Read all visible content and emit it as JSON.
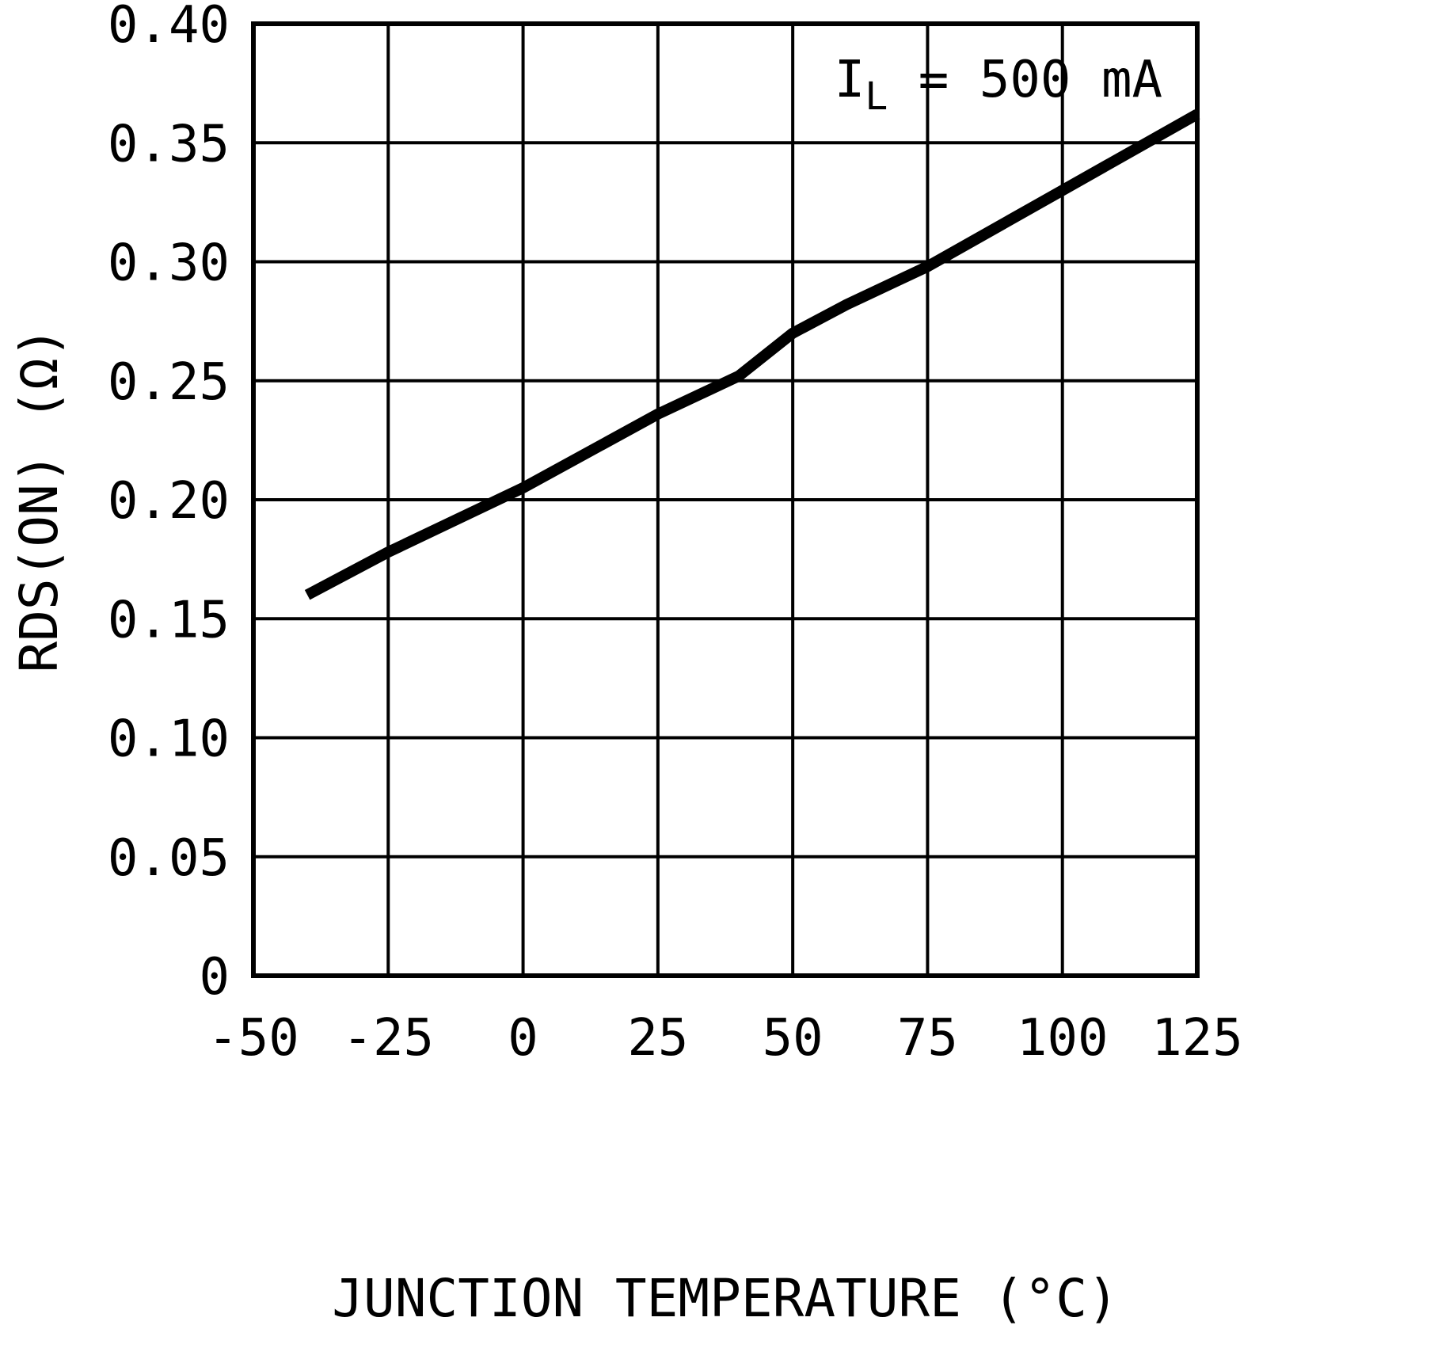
{
  "chart_data": {
    "type": "line",
    "title": "",
    "xlabel": "JUNCTION TEMPERATURE (°C)",
    "ylabel": "RDS(ON) (Ω)",
    "annotation": {
      "prefix": "I",
      "sub": "L",
      "suffix": " = 500 mA"
    },
    "xlim": [
      -50,
      125
    ],
    "ylim": [
      0,
      0.4
    ],
    "xticks": [
      -50,
      -25,
      0,
      25,
      50,
      75,
      100,
      125
    ],
    "xtick_labels": [
      "-50",
      "-25",
      "0",
      "25",
      "50",
      "75",
      "100",
      "125"
    ],
    "yticks": [
      0,
      0.05,
      0.1,
      0.15,
      0.2,
      0.25,
      0.3,
      0.35,
      0.4
    ],
    "ytick_labels": [
      "0",
      "0.05",
      "0.10",
      "0.15",
      "0.20",
      "0.25",
      "0.30",
      "0.35",
      "0.40"
    ],
    "grid": true,
    "legend": "none",
    "series": [
      {
        "name": "RDS(ON) at IL = 500 mA",
        "x": [
          -40,
          -25,
          0,
          25,
          40,
          50,
          60,
          75,
          100,
          125
        ],
        "y": [
          0.16,
          0.178,
          0.205,
          0.236,
          0.252,
          0.27,
          0.282,
          0.298,
          0.33,
          0.362
        ],
        "color": "#000000"
      }
    ]
  },
  "colors": {
    "background": "#ffffff",
    "grid": "#000000",
    "border": "#000000",
    "line": "#000000",
    "text": "#000000"
  }
}
